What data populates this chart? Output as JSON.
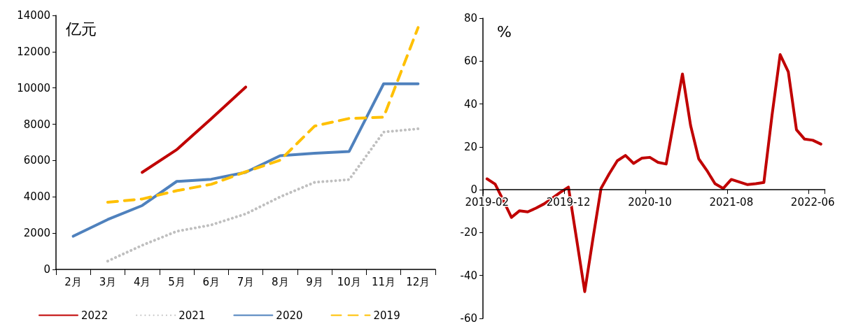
{
  "chart_data": [
    {
      "type": "line",
      "ylabel": "亿元",
      "categories": [
        "2月",
        "3月",
        "4月",
        "5月",
        "6月",
        "7月",
        "8月",
        "9月",
        "10月",
        "11月",
        "12月"
      ],
      "ylim": [
        0,
        14000
      ],
      "yticks": [
        0,
        2000,
        4000,
        6000,
        8000,
        10000,
        12000,
        14000
      ],
      "grid": false,
      "legend": "bottom",
      "series": [
        {
          "name": "2022",
          "color": "#c00000",
          "line_style": "solid",
          "values": [
            null,
            null,
            5350,
            6600,
            8300,
            10050,
            null,
            null,
            null,
            null,
            null
          ]
        },
        {
          "name": "2021",
          "color": "#bfbfbf",
          "line_style": "dotted",
          "values": [
            null,
            460,
            1330,
            2100,
            2450,
            3060,
            4000,
            4800,
            4950,
            7570,
            7750
          ]
        },
        {
          "name": "2020",
          "color": "#4f81bd",
          "line_style": "solid",
          "values": [
            1830,
            2750,
            3520,
            4850,
            4970,
            5350,
            6270,
            6400,
            6500,
            10230,
            10230
          ]
        },
        {
          "name": "2019",
          "color": "#ffc000",
          "line_style": "dashed",
          "values": [
            null,
            3700,
            3880,
            4340,
            4690,
            5380,
            6020,
            7900,
            8320,
            8390,
            13330
          ]
        }
      ]
    },
    {
      "type": "line",
      "ylabel": "%",
      "categories": [
        "2019-02",
        null,
        null,
        null,
        null,
        null,
        null,
        null,
        null,
        null,
        "2019-12",
        null,
        null,
        null,
        null,
        null,
        null,
        null,
        null,
        null,
        "2020-10",
        null,
        null,
        null,
        null,
        null,
        null,
        null,
        null,
        null,
        "2021-08",
        null,
        null,
        null,
        null,
        null,
        null,
        null,
        null,
        null,
        "2022-06",
        null
      ],
      "ylim": [
        -60,
        80
      ],
      "yticks": [
        -60,
        -40,
        -20,
        0,
        20,
        40,
        60,
        80
      ],
      "grid": false,
      "series": [
        {
          "color": "#c00000",
          "line_style": "solid",
          "values": [
            5.1,
            2.6,
            -5,
            -12.9,
            -9.8,
            -10.3,
            -8.6,
            -6.6,
            -4,
            -1.2,
            1.2,
            -23,
            -47.5,
            -23,
            0.6,
            7.4,
            13.5,
            16,
            12.3,
            14.7,
            15.1,
            12.8,
            12,
            33,
            54,
            30,
            14.4,
            9,
            2.8,
            0.6,
            4.8,
            3.6,
            2.4,
            2.8,
            3.4,
            34.7,
            63,
            55,
            28,
            23.6,
            23.1,
            21.3
          ]
        }
      ]
    }
  ]
}
